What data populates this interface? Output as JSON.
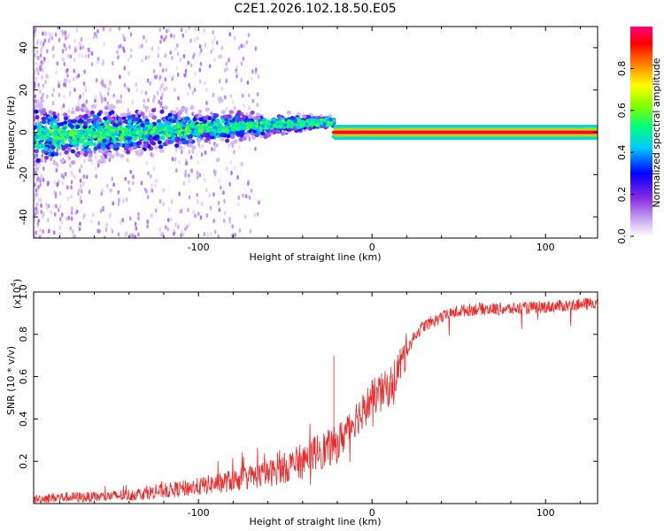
{
  "title": "C2E1.2026.102.18.50.E05",
  "chart_data": [
    {
      "type": "heatmap",
      "title": "C2E1.2026.102.18.50.E05",
      "xlabel": "Height of straight line (km)",
      "ylabel": "Frequency (Hz)",
      "xlim": [
        -195,
        130
      ],
      "ylim": [
        -50,
        50
      ],
      "xticks": [
        -100,
        0,
        100
      ],
      "xtick_labels": [
        "-100",
        "0",
        "100"
      ],
      "yticks": [
        -40,
        -20,
        0,
        20,
        40
      ],
      "ytick_labels": [
        "-40",
        "-20",
        "0",
        "20",
        "40"
      ],
      "colorbar": {
        "label": "Normalized spectral amplitude",
        "range": [
          0,
          1
        ],
        "ticks": [
          0.0,
          0.2,
          0.4,
          0.6,
          0.8
        ],
        "tick_labels": [
          "0.0",
          "0.2",
          "0.4",
          "0.6",
          "0.8"
        ],
        "colormap": [
          "#ffffff",
          "#c8a8f0",
          "#8a2be2",
          "#0000ff",
          "#00c8ff",
          "#00ff80",
          "#80ff00",
          "#ffff00",
          "#ff8000",
          "#ff0000",
          "#ff0080"
        ]
      },
      "regions": [
        {
          "x_range": [
            -195,
            -22
          ],
          "center_freq": "drifts from -2 to +6 Hz",
          "amplitude": "low to medium, scattered"
        },
        {
          "x_range": [
            -22,
            15
          ],
          "center_freq": 0,
          "amplitude": "high, intermittent"
        },
        {
          "x_range": [
            15,
            130
          ],
          "center_freq": 0,
          "amplitude": 1.0
        }
      ]
    },
    {
      "type": "line",
      "xlabel": "Height of straight line (km)",
      "ylabel": "SNR (10 * v/v)",
      "y_multiplier_label": "(x10",
      "y_multiplier_exp": "4",
      "xlim": [
        -195,
        130
      ],
      "ylim": [
        0,
        1.0
      ],
      "xticks": [
        -100,
        0,
        100
      ],
      "xtick_labels": [
        "-100",
        "0",
        "100"
      ],
      "yticks": [
        0.2,
        0.4,
        0.6,
        0.8,
        1.0
      ],
      "ytick_labels": [
        "0.2",
        "0.4",
        "0.6",
        "0.8",
        "1.0"
      ],
      "color": "#ee2a2a",
      "series": [
        {
          "name": "SNR",
          "x": [
            -195,
            -180,
            -160,
            -140,
            -120,
            -100,
            -80,
            -60,
            -40,
            -30,
            -25,
            -20,
            -15,
            -10,
            -5,
            0,
            10,
            20,
            25,
            30,
            40,
            50,
            60,
            80,
            100,
            120,
            130
          ],
          "values": [
            0.02,
            0.03,
            0.03,
            0.04,
            0.06,
            0.08,
            0.11,
            0.14,
            0.2,
            0.25,
            0.26,
            0.28,
            0.34,
            0.4,
            0.44,
            0.5,
            0.55,
            0.72,
            0.8,
            0.84,
            0.88,
            0.91,
            0.92,
            0.92,
            0.93,
            0.94,
            0.95
          ]
        }
      ],
      "annotations": [
        {
          "x": -22,
          "y": 0.7,
          "note": "spike"
        }
      ]
    }
  ]
}
